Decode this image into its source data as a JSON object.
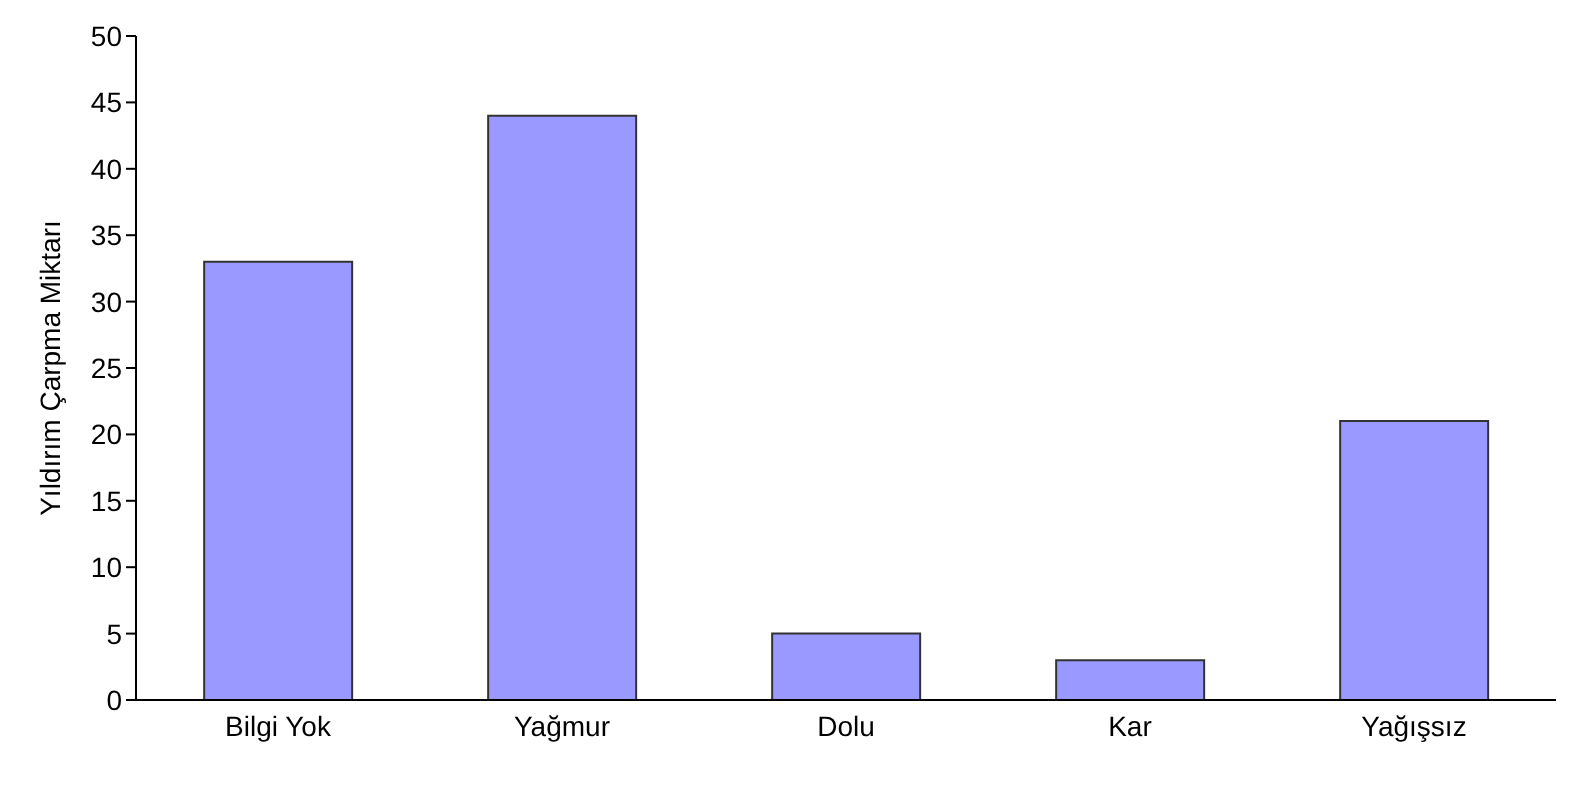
{
  "chart_data": {
    "type": "bar",
    "ylabel": "Yıldırım Çarpma Miktarı",
    "categories": [
      "Bilgi Yok",
      "Yağmur",
      "Dolu",
      "Kar",
      "Yağışsız"
    ],
    "values": [
      33,
      44,
      5,
      3,
      21
    ],
    "color": "#9999ff",
    "ylim": [
      0,
      50
    ],
    "yticks": [
      0,
      5,
      10,
      15,
      20,
      25,
      30,
      35,
      40,
      45,
      50
    ],
    "grid": false
  }
}
